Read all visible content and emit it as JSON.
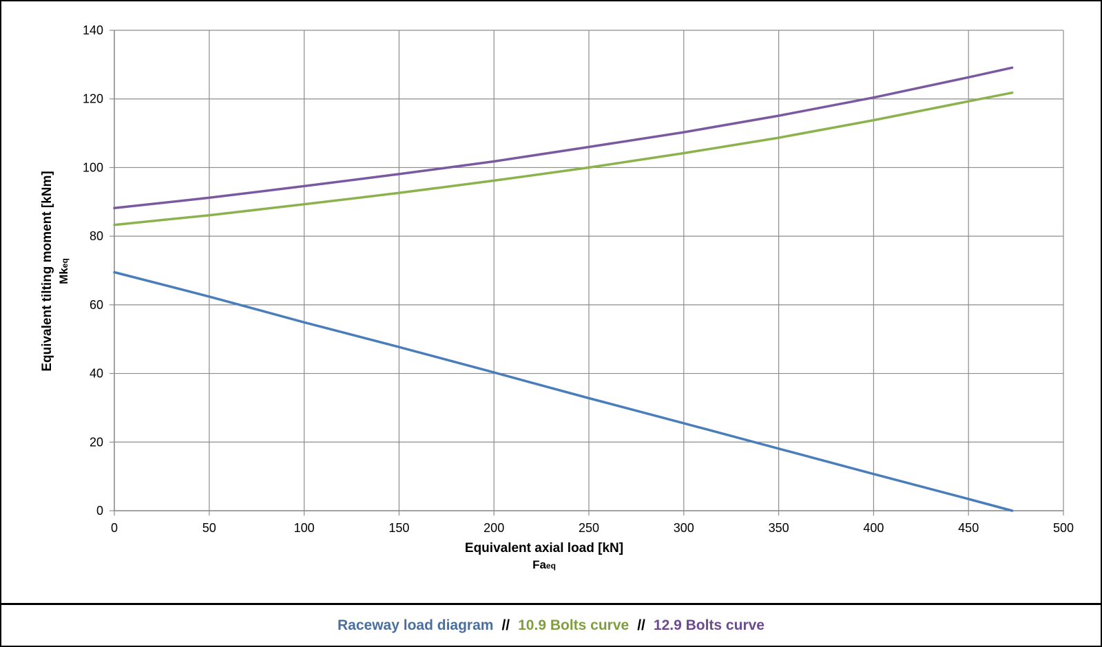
{
  "chart_data": {
    "type": "line",
    "xlabel": "Equivalent axial load [kN]",
    "xlabel_sub": "Fa",
    "xlabel_subscript": "eq",
    "ylabel": "Equivalent tilting moment [kNm]",
    "ylabel_sub": "Mk",
    "ylabel_subscript": "eq",
    "xlim": [
      0,
      500
    ],
    "ylim": [
      0,
      140
    ],
    "x_ticks": [
      "0",
      "50",
      "100",
      "150",
      "200",
      "250",
      "300",
      "350",
      "400",
      "450",
      "500"
    ],
    "y_ticks": [
      "0",
      "20",
      "40",
      "60",
      "80",
      "100",
      "120",
      "140"
    ],
    "grid": true,
    "series": [
      {
        "name": "Raceway load diagram",
        "color": "#4a7ebb",
        "x": [
          0,
          50,
          100,
          150,
          200,
          250,
          300,
          350,
          400,
          450,
          473
        ],
        "y": [
          69.5,
          62.4,
          54.9,
          47.7,
          40.3,
          32.8,
          25.5,
          18.1,
          10.7,
          3.4,
          0
        ]
      },
      {
        "name": "10.9 Bolts curve",
        "color": "#8cb24e",
        "x": [
          0,
          50,
          100,
          150,
          200,
          250,
          300,
          350,
          400,
          450,
          473
        ],
        "y": [
          83.3,
          86.1,
          89.3,
          92.6,
          96.2,
          100.0,
          104.2,
          108.7,
          113.8,
          119.3,
          121.8
        ]
      },
      {
        "name": "12.9 Bolts curve",
        "color": "#7b59a0",
        "x": [
          0,
          50,
          100,
          150,
          200,
          250,
          300,
          350,
          400,
          450,
          473
        ],
        "y": [
          88.2,
          91.2,
          94.6,
          98.1,
          101.8,
          106.0,
          110.3,
          115.1,
          120.4,
          126.3,
          129.1
        ]
      }
    ]
  },
  "legend": {
    "separator": "//"
  }
}
